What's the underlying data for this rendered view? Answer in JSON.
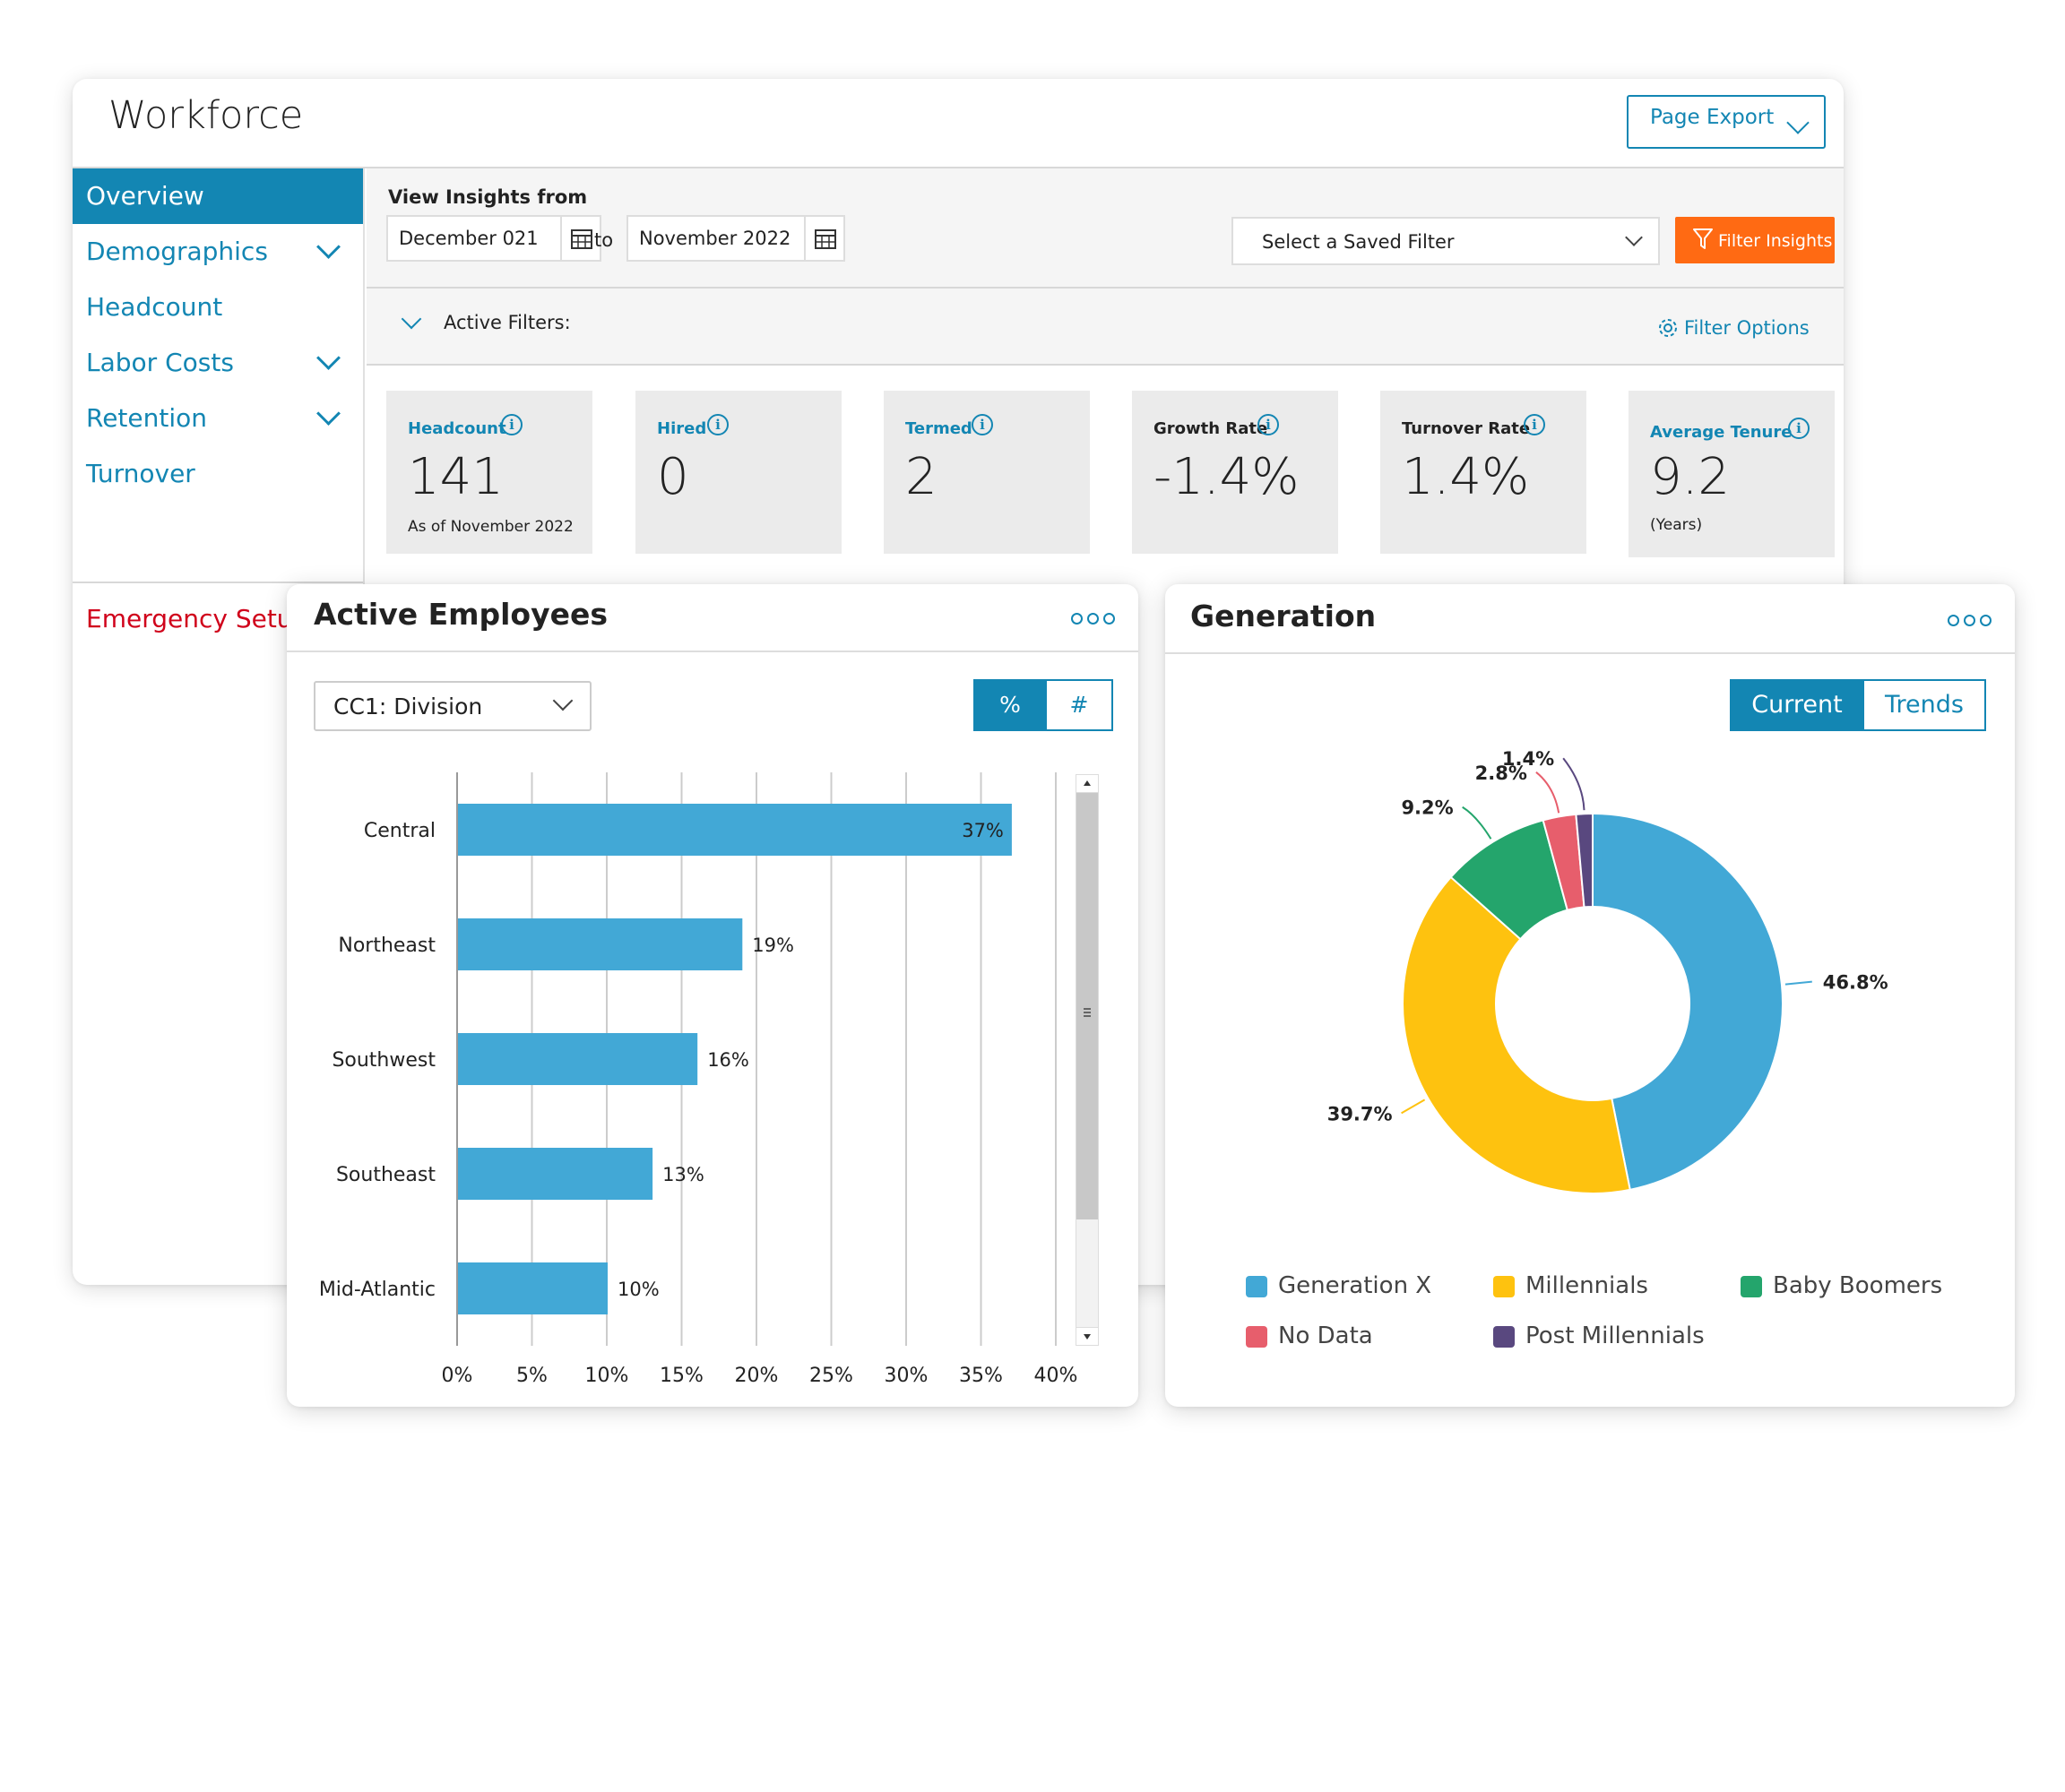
{
  "app": {
    "title": "Workforce",
    "export_label": "Page Export"
  },
  "sidebar": {
    "items": [
      {
        "label": "Overview",
        "active": true
      },
      {
        "label": "Demographics",
        "expandable": true
      },
      {
        "label": "Headcount"
      },
      {
        "label": "Labor Costs",
        "expandable": true
      },
      {
        "label": "Retention",
        "expandable": true
      },
      {
        "label": "Turnover"
      },
      {
        "label": "Emergency Setup"
      }
    ]
  },
  "filters": {
    "view_label": "View Insights from",
    "from_date": "December   021",
    "to_label": "to",
    "to_date": "November 2022",
    "saved_filter_placeholder": "Select a Saved Filter",
    "filter_button": "Filter Insights",
    "active_filters_label": "Active Filters:",
    "filter_options_label": "Filter Options"
  },
  "kpis": [
    {
      "label": "Headcount",
      "value": "141",
      "sub": "As of November 2022"
    },
    {
      "label": "Hired",
      "value": "0",
      "sub": ""
    },
    {
      "label": "Termed",
      "value": "2",
      "sub": ""
    },
    {
      "label": "Growth Rate",
      "value": "-1.4%",
      "sub": ""
    },
    {
      "label": "Turnover Rate",
      "value": "1.4%",
      "sub": ""
    },
    {
      "label": "Average Tenure",
      "value": "9.2",
      "sub": "(Years)"
    }
  ],
  "active_employees": {
    "title": "Active Employees",
    "group_by": "CC1: Division",
    "toggle": [
      {
        "label": "%",
        "selected": true
      },
      {
        "label": "#",
        "selected": false
      }
    ]
  },
  "generation": {
    "title": "Generation",
    "toggle": [
      {
        "label": "Current",
        "selected": true
      },
      {
        "label": "Trends",
        "selected": false
      }
    ],
    "legend": [
      "Generation X",
      "Millennials",
      "Baby Boomers",
      "No Data",
      "Post Millennials"
    ]
  },
  "colors": {
    "accent": "#1386b3",
    "filter_button": "#ff6a13",
    "alert": "#d0021b",
    "bar": "#42a8d6"
  },
  "chart_data": [
    {
      "type": "bar",
      "orientation": "horizontal",
      "categories": [
        "Central",
        "Northeast",
        "Southwest",
        "Southeast",
        "Mid-Atlantic"
      ],
      "values": [
        37,
        19,
        16,
        13,
        10
      ],
      "data_labels": [
        "37%",
        "19%",
        "16%",
        "13%",
        "10%"
      ],
      "xlim": [
        0,
        40
      ],
      "x_ticks": [
        "0%",
        "5%",
        "10%",
        "15%",
        "20%",
        "25%",
        "30%",
        "35%",
        "40%"
      ],
      "grid": true,
      "color": "#42a8d6"
    },
    {
      "type": "pie",
      "donut": true,
      "slices": [
        {
          "name": "Generation X",
          "value": 46.8,
          "label": "46.8%",
          "color": "#42a8d6"
        },
        {
          "name": "Millennials",
          "value": 39.7,
          "label": "39.7%",
          "color": "#fec20f"
        },
        {
          "name": "Baby Boomers",
          "value": 9.2,
          "label": "9.2%",
          "color": "#24a56c"
        },
        {
          "name": "No Data",
          "value": 2.8,
          "label": "2.8%",
          "color": "#e75e6c"
        },
        {
          "name": "Post Millennials",
          "value": 1.4,
          "label": "1.4%",
          "color": "#59487f"
        }
      ],
      "legend_position": "bottom"
    }
  ]
}
